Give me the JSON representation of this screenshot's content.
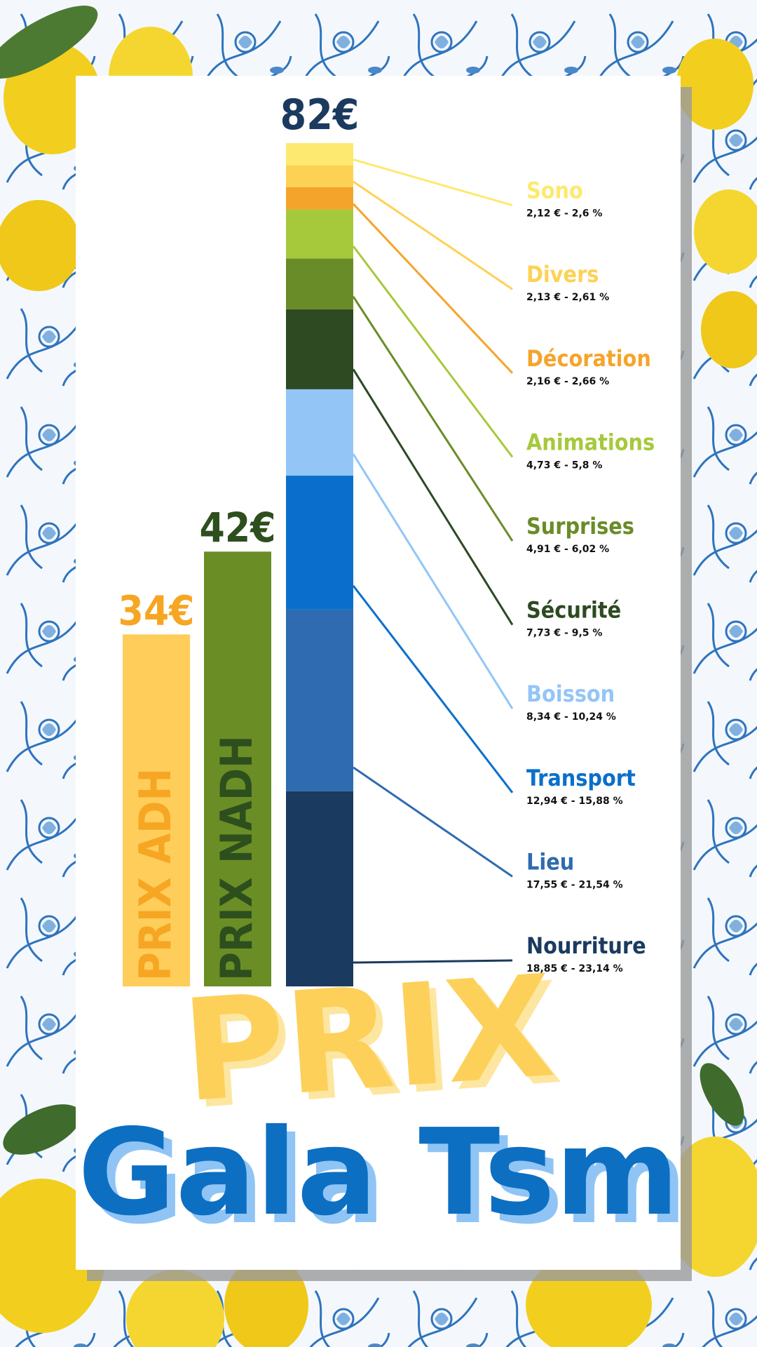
{
  "chart_data": {
    "type": "stacked-bar",
    "title_top": "PRIX",
    "title": "Gala Tsm",
    "categories": [
      "PRIX ADH",
      "PRIX NADH"
    ],
    "values": [
      34,
      42
    ],
    "value_labels": [
      "34€",
      "42€"
    ],
    "colors": [
      "#fecd5a",
      "#6a8e25"
    ],
    "label_colors": [
      "#f6a623",
      "#2d4f1e"
    ],
    "stack": {
      "total": 82,
      "total_label": "82€",
      "total_color": "#1b3a5f",
      "segments": [
        {
          "name": "Nourriture",
          "color": "#1b3a5f",
          "value": 18.85,
          "value_label": "18,85 € - 23,14 %"
        },
        {
          "name": "Lieu",
          "color": "#2e6bb0",
          "value": 17.55,
          "value_label": "17,55 € - 21,54 %"
        },
        {
          "name": "Transport",
          "color": "#0a6fcc",
          "value": 12.94,
          "value_label": "12,94 € - 15,88 %"
        },
        {
          "name": "Boisson",
          "color": "#93c5f7",
          "value": 8.34,
          "value_label": "8,34 € - 10,24 %"
        },
        {
          "name": "Sécurité",
          "color": "#2d4a22",
          "value": 7.73,
          "value_label": "7,73 € - 9,5 %"
        },
        {
          "name": "Surprises",
          "color": "#6a8c28",
          "value": 4.91,
          "value_label": "4,91 € - 6,02 %"
        },
        {
          "name": "Animations",
          "color": "#a6c93c",
          "value": 4.73,
          "value_label": "4,73 € - 5,8 %"
        },
        {
          "name": "Décoration",
          "color": "#f5a42b",
          "value": 2.16,
          "value_label": "2,16 € - 2,66 %"
        },
        {
          "name": "Divers",
          "color": "#fdd254",
          "value": 2.13,
          "value_label": "2,13 € - 2,61 %"
        },
        {
          "name": "Sono",
          "color": "#fde96f",
          "value": 2.12,
          "value_label": "2,12 € - 2,6 %"
        }
      ]
    }
  }
}
